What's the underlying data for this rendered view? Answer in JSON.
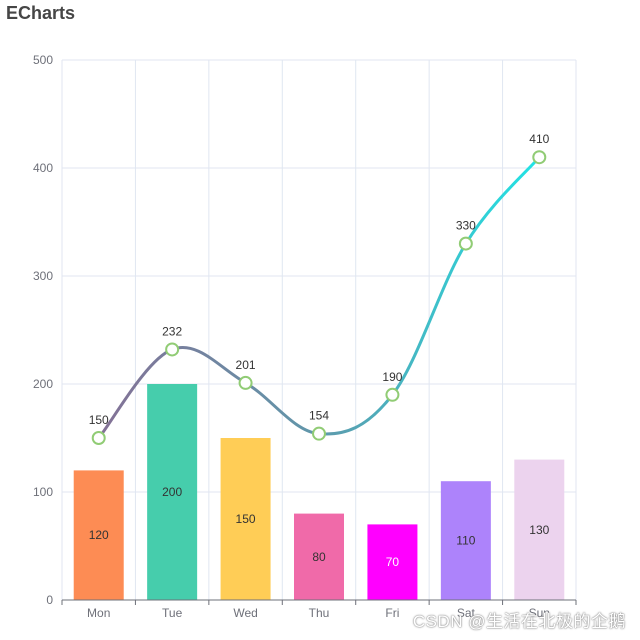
{
  "title": "ECharts",
  "watermark": "CSDN @生活在北极的企鹅",
  "chart_data": {
    "type": "bar+line",
    "categories": [
      "Mon",
      "Tue",
      "Wed",
      "Thu",
      "Fri",
      "Sat",
      "Sun"
    ],
    "ylim": [
      0,
      500
    ],
    "yticks": [
      0,
      100,
      200,
      300,
      400,
      500
    ],
    "grid": true,
    "series": [
      {
        "type": "bar",
        "values": [
          120,
          200,
          150,
          80,
          70,
          110,
          130
        ],
        "colors": [
          "#fd8c54",
          "#46cdac",
          "#ffcd56",
          "#f06aa9",
          "#ff00ff",
          "#ad83fb",
          "#ecd3ee"
        ],
        "label_colors": [
          "#333333",
          "#333333",
          "#333333",
          "#333333",
          "#ffffff",
          "#333333",
          "#333333"
        ]
      },
      {
        "type": "line",
        "smooth": true,
        "values": [
          150,
          232,
          201,
          154,
          190,
          330,
          410
        ],
        "gradient": [
          "#8a6a92",
          "#5f98ab",
          "#16f0ef"
        ],
        "marker_color": "#91cc75"
      }
    ]
  }
}
